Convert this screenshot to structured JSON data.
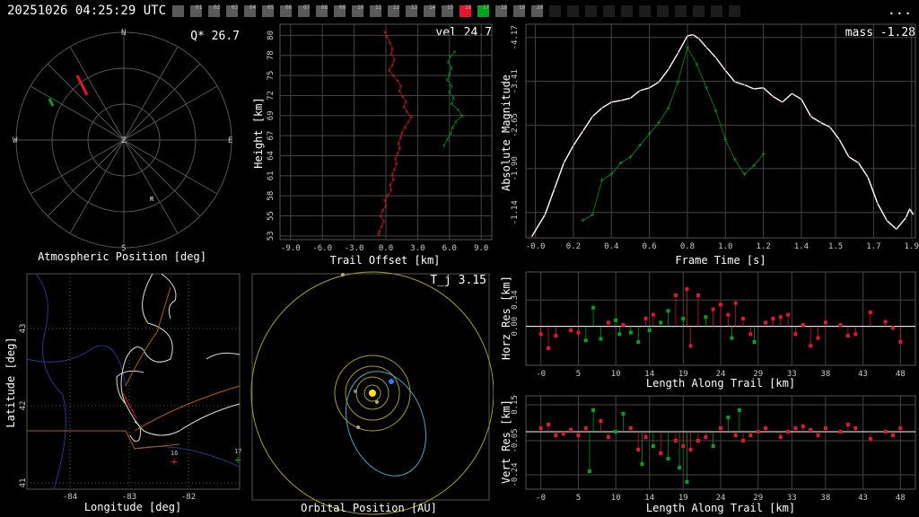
{
  "timestamp": "20251026 04:25:29 UTC",
  "menu_dots": "...",
  "stations": [
    {
      "label": "",
      "state": "on"
    },
    {
      "label": "01",
      "state": "on"
    },
    {
      "label": "02",
      "state": "on"
    },
    {
      "label": "03",
      "state": "on"
    },
    {
      "label": "04",
      "state": "on"
    },
    {
      "label": "05",
      "state": "on"
    },
    {
      "label": "06",
      "state": "on"
    },
    {
      "label": "07",
      "state": "on"
    },
    {
      "label": "08",
      "state": "on"
    },
    {
      "label": "09",
      "state": "on"
    },
    {
      "label": "10",
      "state": "on"
    },
    {
      "label": "11",
      "state": "on"
    },
    {
      "label": "12",
      "state": "on"
    },
    {
      "label": "13",
      "state": "on"
    },
    {
      "label": "14",
      "state": "on"
    },
    {
      "label": "15",
      "state": "on"
    },
    {
      "label": "16",
      "state": "red"
    },
    {
      "label": "17",
      "state": "green"
    },
    {
      "label": "18",
      "state": "on"
    },
    {
      "label": "19",
      "state": "on"
    },
    {
      "label": "20",
      "state": "on"
    },
    {
      "label": "",
      "state": "dark"
    },
    {
      "label": "",
      "state": "dark"
    },
    {
      "label": "",
      "state": "dark"
    },
    {
      "label": "",
      "state": "dark"
    },
    {
      "label": "",
      "state": "dark"
    },
    {
      "label": "",
      "state": "dark"
    },
    {
      "label": "",
      "state": "dark"
    },
    {
      "label": "",
      "state": "dark"
    },
    {
      "label": "",
      "state": "dark"
    },
    {
      "label": "",
      "state": "dark"
    },
    {
      "label": "",
      "state": "dark"
    }
  ],
  "colors": {
    "station_16": "#e8142d",
    "station_17": "#00a41b",
    "grid": "#444444",
    "panel_border": "#555555"
  },
  "sky": {
    "title": "Atmospheric Position [deg]",
    "stat": "Q* 26.7",
    "dirs": {
      "n": "N",
      "s": "S",
      "e": "E",
      "w": "W",
      "z": "Z"
    },
    "radiant_label": "R"
  },
  "height": {
    "stat": "vel 24.7",
    "xlabel": "Trail Offset [km]",
    "ylabel": "Height [km]",
    "xticks": [
      "-9.0",
      "-6.0",
      "-3.0",
      "0.0",
      "3.0",
      "6.0",
      "9.0"
    ],
    "yticks": [
      "53",
      "55",
      "58",
      "61",
      "64",
      "67",
      "69",
      "72",
      "75",
      "78",
      "80"
    ],
    "xlim": [
      -10,
      10
    ],
    "ylim": [
      52.5,
      81.5
    ]
  },
  "mag": {
    "stat": "mass -1.28",
    "xlabel": "Frame Time [s]",
    "ylabel": "Absolute Magnitude",
    "xticks": [
      "-0.0",
      "0.2",
      "0.4",
      "0.6",
      "0.8",
      "1.0",
      "1.2",
      "1.4",
      "1.5",
      "1.7",
      "1.9"
    ],
    "yticks": [
      "-1.14",
      "-1.90",
      "-2.65",
      "-3.41",
      "-4.17"
    ],
    "xlim": [
      -0.05,
      2.0
    ],
    "ylim": [
      -0.7,
      -4.4
    ]
  },
  "map": {
    "xlabel": "Longitude [deg]",
    "ylabel": "Latitude [deg]",
    "xticks": [
      "-84",
      "-83",
      "-82"
    ],
    "yticks": [
      "43",
      "42",
      "41"
    ],
    "station_labels": [
      "16",
      "17"
    ]
  },
  "orbit": {
    "title": "Orbital Position [AU]",
    "stat": "T_j 3.15"
  },
  "hres": {
    "xlabel": "Length Along Trail [km]",
    "ylabel": "Horz Res [km]",
    "xticks": [
      "-0",
      "5",
      "10",
      "14",
      "19",
      "24",
      "29",
      "33",
      "38",
      "43",
      "48"
    ],
    "yticks": [
      "0.34",
      "0.00"
    ],
    "xlim": [
      -2,
      50
    ],
    "ylim": [
      -0.5,
      0.7
    ]
  },
  "vres": {
    "xlabel": "Length Along Trail [km]",
    "ylabel": "Vert Res [km]",
    "xticks": [
      "-0",
      "5",
      "10",
      "14",
      "19",
      "24",
      "29",
      "33",
      "38",
      "43",
      "48"
    ],
    "yticks": [
      "0.15",
      "-0.05",
      "-0.24"
    ],
    "xlim": [
      -2,
      50
    ],
    "ylim": [
      -0.32,
      0.2
    ]
  },
  "chart_data": [
    {
      "type": "line",
      "title": "",
      "xlabel": "Trail Offset [km]",
      "ylabel": "Height [km]",
      "xlim": [
        -10,
        10
      ],
      "ylim": [
        52.5,
        81.5
      ],
      "series": [
        {
          "color": "#e8142d",
          "points": [
            [
              -0.1,
              80.5
            ],
            [
              0.1,
              79.8
            ],
            [
              0.4,
              79
            ],
            [
              0.6,
              78.2
            ],
            [
              0.5,
              77.5
            ],
            [
              0.8,
              76.8
            ],
            [
              0.6,
              76
            ],
            [
              0.3,
              75.3
            ],
            [
              0.7,
              74.6
            ],
            [
              1.1,
              73.9
            ],
            [
              1.4,
              73.2
            ],
            [
              1.3,
              72.5
            ],
            [
              1.6,
              71.8
            ],
            [
              1.9,
              71.1
            ],
            [
              1.7,
              70.4
            ],
            [
              2.0,
              69.7
            ],
            [
              2.4,
              69.0
            ],
            [
              2.1,
              68.3
            ],
            [
              1.8,
              67.6
            ],
            [
              1.5,
              66.9
            ],
            [
              1.4,
              66.2
            ],
            [
              1.2,
              65.5
            ],
            [
              1.3,
              64.8
            ],
            [
              1.1,
              64.1
            ],
            [
              0.9,
              63.4
            ],
            [
              1.0,
              62.7
            ],
            [
              0.8,
              62.0
            ],
            [
              0.6,
              61.3
            ],
            [
              0.7,
              60.6
            ],
            [
              0.4,
              59.9
            ],
            [
              0.5,
              59.2
            ],
            [
              0.2,
              58.5
            ],
            [
              -0.1,
              57.8
            ],
            [
              0.0,
              57.1
            ],
            [
              -0.3,
              56.4
            ],
            [
              -0.5,
              55.7
            ],
            [
              -0.2,
              55.0
            ],
            [
              -0.4,
              54.3
            ],
            [
              -0.6,
              53.6
            ],
            [
              -0.7,
              53.2
            ]
          ]
        },
        {
          "color": "#00a41b",
          "points": [
            [
              6.5,
              77.8
            ],
            [
              6.1,
              77.2
            ],
            [
              5.9,
              76.4
            ],
            [
              6.2,
              75.6
            ],
            [
              6.0,
              74.8
            ],
            [
              5.8,
              74.0
            ],
            [
              6.2,
              73.2
            ],
            [
              6.0,
              72.4
            ],
            [
              6.4,
              71.6
            ],
            [
              6.2,
              70.8
            ],
            [
              6.8,
              70.0
            ],
            [
              7.2,
              69.2
            ],
            [
              6.6,
              68.4
            ],
            [
              6.3,
              67.6
            ],
            [
              6.1,
              66.8
            ],
            [
              5.8,
              66.0
            ],
            [
              5.5,
              65.2
            ]
          ]
        }
      ]
    },
    {
      "type": "line",
      "title": "",
      "xlabel": "Frame Time [s]",
      "ylabel": "Absolute Magnitude",
      "xlim": [
        -0.05,
        2.0
      ],
      "ylim": [
        -0.7,
        -4.4
      ],
      "series": [
        {
          "color": "#e8142d",
          "points": [
            [
              -0.02,
              -0.72
            ],
            [
              0.05,
              -1.1
            ],
            [
              0.1,
              -1.55
            ],
            [
              0.15,
              -2.0
            ],
            [
              0.2,
              -2.3
            ],
            [
              0.25,
              -2.55
            ],
            [
              0.3,
              -2.8
            ],
            [
              0.35,
              -2.95
            ],
            [
              0.4,
              -3.05
            ],
            [
              0.45,
              -3.08
            ],
            [
              0.5,
              -3.12
            ],
            [
              0.55,
              -3.25
            ],
            [
              0.6,
              -3.3
            ],
            [
              0.65,
              -3.4
            ],
            [
              0.7,
              -3.62
            ],
            [
              0.75,
              -3.9
            ],
            [
              0.8,
              -4.2
            ],
            [
              0.83,
              -4.22
            ],
            [
              0.86,
              -4.15
            ],
            [
              0.9,
              -4.0
            ],
            [
              0.95,
              -3.82
            ],
            [
              1.0,
              -3.6
            ],
            [
              1.05,
              -3.4
            ],
            [
              1.1,
              -3.35
            ],
            [
              1.15,
              -3.28
            ],
            [
              1.2,
              -3.3
            ],
            [
              1.25,
              -3.15
            ],
            [
              1.3,
              -3.05
            ],
            [
              1.35,
              -3.2
            ],
            [
              1.4,
              -3.1
            ],
            [
              1.45,
              -2.8
            ],
            [
              1.5,
              -2.7
            ],
            [
              1.55,
              -2.62
            ],
            [
              1.6,
              -2.4
            ],
            [
              1.65,
              -2.1
            ],
            [
              1.7,
              -2.0
            ],
            [
              1.75,
              -1.75
            ],
            [
              1.8,
              -1.3
            ],
            [
              1.85,
              -1.0
            ],
            [
              1.9,
              -0.85
            ],
            [
              1.95,
              -1.05
            ],
            [
              1.97,
              -1.2
            ],
            [
              1.99,
              -1.1
            ]
          ]
        },
        {
          "color": "#00a41b",
          "points": [
            [
              0.25,
              -1.0
            ],
            [
              0.3,
              -1.1
            ],
            [
              0.35,
              -1.7
            ],
            [
              0.4,
              -1.8
            ],
            [
              0.45,
              -2.0
            ],
            [
              0.5,
              -2.1
            ],
            [
              0.55,
              -2.3
            ],
            [
              0.6,
              -2.5
            ],
            [
              0.65,
              -2.7
            ],
            [
              0.7,
              -2.95
            ],
            [
              0.75,
              -3.4
            ],
            [
              0.8,
              -4.0
            ],
            [
              0.85,
              -3.7
            ],
            [
              0.9,
              -3.3
            ],
            [
              0.95,
              -2.9
            ],
            [
              1.0,
              -2.4
            ],
            [
              1.05,
              -2.05
            ],
            [
              1.1,
              -1.8
            ],
            [
              1.15,
              -1.95
            ],
            [
              1.2,
              -2.15
            ]
          ]
        }
      ]
    }
  ]
}
